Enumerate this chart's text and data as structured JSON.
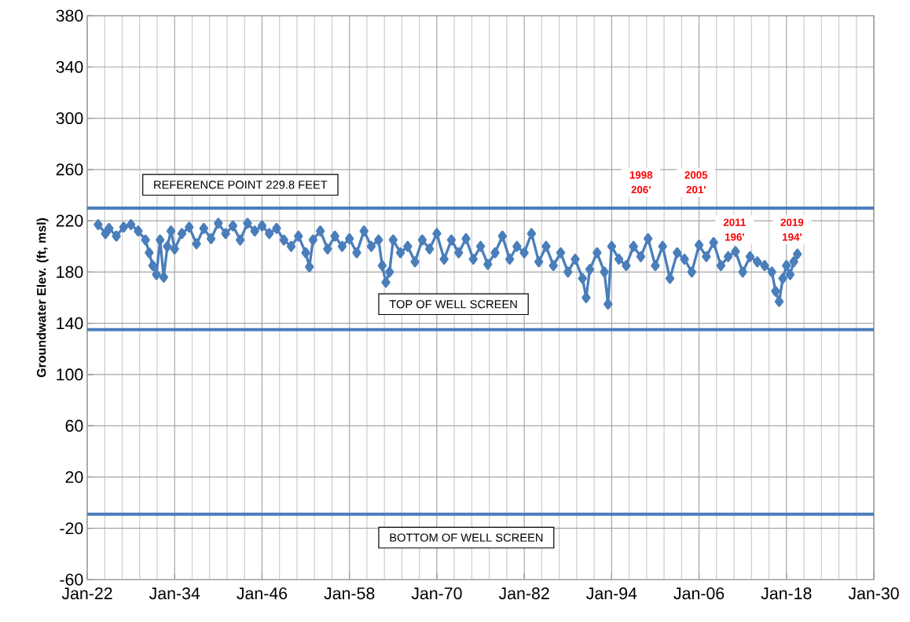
{
  "chart_data": {
    "type": "line",
    "ylabel": "Groundwater Elev. (ft, msl)",
    "x": [
      "1923-07",
      "1924-07",
      "1925-01",
      "1926-01",
      "1927-01",
      "1928-01",
      "1929-01",
      "1930-01",
      "1930-07",
      "1931-01",
      "1931-07",
      "1932-01",
      "1932-07",
      "1933-01",
      "1933-07",
      "1934-01",
      "1935-01",
      "1936-01",
      "1937-01",
      "1938-01",
      "1939-01",
      "1940-01",
      "1941-01",
      "1942-01",
      "1943-01",
      "1944-01",
      "1945-01",
      "1946-01",
      "1947-01",
      "1948-01",
      "1949-01",
      "1950-01",
      "1951-01",
      "1952-01",
      "1952-07",
      "1953-01",
      "1954-01",
      "1955-01",
      "1956-01",
      "1957-01",
      "1958-01",
      "1959-01",
      "1960-01",
      "1961-01",
      "1962-01",
      "1962-07",
      "1963-01",
      "1963-07",
      "1964-01",
      "1965-01",
      "1966-01",
      "1967-01",
      "1968-01",
      "1969-01",
      "1970-01",
      "1971-01",
      "1972-01",
      "1973-01",
      "1974-01",
      "1975-01",
      "1976-01",
      "1977-01",
      "1978-01",
      "1979-01",
      "1980-01",
      "1981-01",
      "1982-01",
      "1983-01",
      "1984-01",
      "1985-01",
      "1986-01",
      "1987-01",
      "1988-01",
      "1989-01",
      "1990-01",
      "1990-07",
      "1991-01",
      "1992-01",
      "1993-01",
      "1993-07",
      "1994-01",
      "1995-01",
      "1996-01",
      "1997-01",
      "1998-01",
      "1999-01",
      "2000-01",
      "2001-01",
      "2002-01",
      "2003-01",
      "2004-01",
      "2005-01",
      "2006-01",
      "2007-01",
      "2008-01",
      "2009-01",
      "2010-01",
      "2011-01",
      "2012-01",
      "2013-01",
      "2014-01",
      "2015-01",
      "2016-01",
      "2016-07",
      "2017-01",
      "2017-07",
      "2018-01",
      "2018-07",
      "2019-01",
      "2019-07"
    ],
    "series": [
      {
        "color": "#4a7ebb",
        "values": [
          217,
          210,
          214,
          208,
          215,
          217,
          212,
          205,
          195,
          185,
          178,
          205,
          176,
          200,
          212,
          198,
          210,
          215,
          202,
          214,
          206,
          218,
          210,
          216,
          205,
          218,
          212,
          216,
          210,
          214,
          205,
          200,
          208,
          195,
          184,
          205,
          212,
          198,
          208,
          200,
          206,
          195,
          212,
          200,
          205,
          185,
          172,
          180,
          205,
          195,
          200,
          188,
          205,
          198,
          210,
          190,
          205,
          195,
          206,
          190,
          200,
          186,
          195,
          208,
          190,
          200,
          195,
          210,
          188,
          200,
          185,
          195,
          180,
          190,
          175,
          160,
          182,
          195,
          180,
          155,
          200,
          190,
          185,
          200,
          192,
          206,
          185,
          200,
          175,
          195,
          190,
          180,
          201,
          192,
          203,
          185,
          192,
          196,
          180,
          192,
          188,
          185,
          180,
          165,
          157,
          175,
          185,
          178,
          188,
          194
        ]
      }
    ],
    "xlim": [
      "1922-01",
      "2030-01"
    ],
    "xticks": [
      {
        "value": "1922-01",
        "label": "Jan-22"
      },
      {
        "value": "1934-01",
        "label": "Jan-34"
      },
      {
        "value": "1946-01",
        "label": "Jan-46"
      },
      {
        "value": "1958-01",
        "label": "Jan-58"
      },
      {
        "value": "1970-01",
        "label": "Jan-70"
      },
      {
        "value": "1982-01",
        "label": "Jan-82"
      },
      {
        "value": "1994-01",
        "label": "Jan-94"
      },
      {
        "value": "2006-01",
        "label": "Jan-06"
      },
      {
        "value": "2018-01",
        "label": "Jan-18"
      },
      {
        "value": "2030-01",
        "label": "Jan-30"
      }
    ],
    "ylim": [
      -60,
      380
    ],
    "yticks": [
      -60,
      -20,
      20,
      60,
      100,
      140,
      180,
      220,
      260,
      300,
      340,
      380
    ],
    "grid": true,
    "marker": "diamond",
    "line_style": "solid",
    "ref_lines": [
      {
        "axis": "y",
        "value": 229.8,
        "label": "REFERENCE POINT 229.8 FEET",
        "color": "#4a7ebb"
      },
      {
        "axis": "y",
        "value": 135,
        "label": "TOP OF WELL SCREEN",
        "color": "#4a7ebb"
      },
      {
        "axis": "y",
        "value": -9,
        "label": "BOTTOM OF WELL SCREEN",
        "color": "#4a7ebb"
      }
    ],
    "annotations": [
      "1998 206'",
      "2005 201'",
      "2011 196'",
      "2019 194'"
    ]
  }
}
